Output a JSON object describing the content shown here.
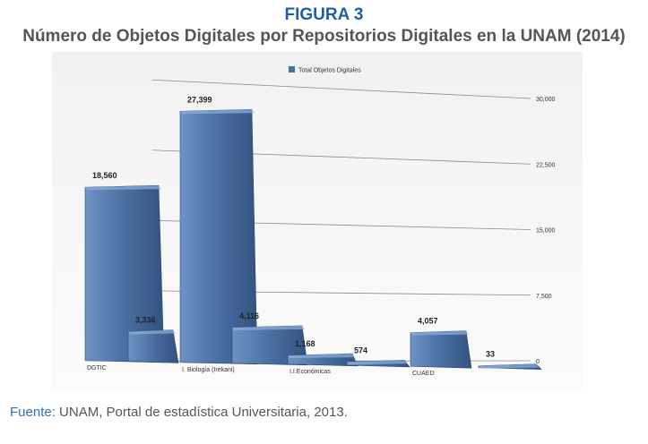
{
  "figure_label": "FIGURA 3",
  "figure_title": "Número de Objetos Digitales por Repositorios Digitales en la UNAM (2014)",
  "source": {
    "label": "Fuente:",
    "text": "UNAM, Portal de estadística Universitaria, 2013."
  },
  "chart_data": {
    "type": "bar",
    "legend": "Total Objetos Digitales",
    "legend_placement": "top",
    "bar_color": "#4a6fa3",
    "categories": [
      "DGTIC",
      "",
      "I. Biología (Irekani)",
      "",
      "I.I.Económicas",
      "",
      "CUAED",
      ""
    ],
    "values": [
      18560,
      3336,
      27399,
      4116,
      1168,
      574,
      4057,
      33
    ],
    "value_labels": [
      "18,560",
      "3,336",
      "27,399",
      "4,116",
      "1,168",
      "574",
      "4,057",
      "33"
    ],
    "y_ticks": [
      "0",
      "7,500",
      "15,000",
      "22,500",
      "30,000"
    ],
    "ylim": [
      0,
      30000
    ],
    "grid": true
  }
}
